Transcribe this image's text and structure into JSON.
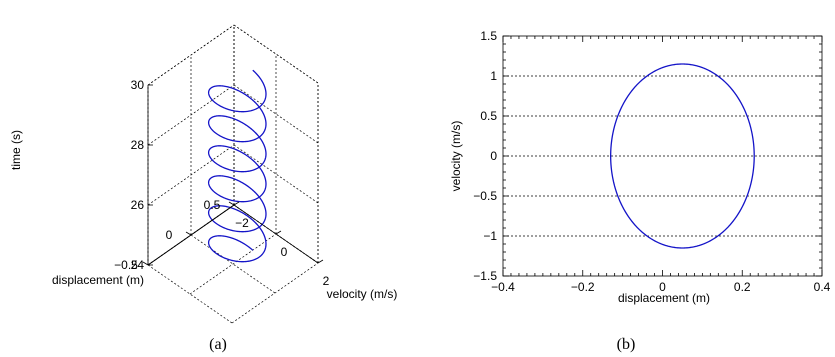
{
  "chart_data": [
    {
      "type": "line3d",
      "caption": "(a)",
      "xlabel": "displacement (m)",
      "ylabel": "velocity (m/s)",
      "zlabel": "time (s)",
      "xlim": [
        -0.5,
        0.5
      ],
      "ylim": [
        -2,
        2
      ],
      "zlim": [
        24,
        30
      ],
      "xticks": [
        -0.5,
        0,
        0.5
      ],
      "yticks": [
        -2,
        0,
        2
      ],
      "zticks": [
        24,
        26,
        28,
        30
      ],
      "xtick_labels": [
        "−0.5",
        "0",
        "0.5"
      ],
      "ytick_labels": [
        "−2",
        "0",
        "2"
      ],
      "ztick_labels": [
        "24",
        "26",
        "28",
        "30"
      ],
      "grid": true,
      "series": [
        {
          "color": "#1414c8",
          "center_displacement": 0.05,
          "displacement_amplitude": 0.18,
          "velocity_amplitude": 1.15,
          "time_start": 24,
          "time_end": 30,
          "turns": 6
        }
      ]
    },
    {
      "type": "line",
      "caption": "(b)",
      "xlabel": "displacement (m)",
      "ylabel": "velocity (m/s)",
      "xlim": [
        -0.4,
        0.4
      ],
      "ylim": [
        -1.5,
        1.5
      ],
      "xticks": [
        -0.4,
        -0.2,
        0,
        0.2,
        0.4
      ],
      "yticks": [
        -1.5,
        -1,
        -0.5,
        0,
        0.5,
        1,
        1.5
      ],
      "xtick_labels": [
        "−0.4",
        "−0.2",
        "0",
        "0.2",
        "0.4"
      ],
      "ytick_labels": [
        "−1.5",
        "−1",
        "−0.5",
        "0",
        "0.5",
        "1",
        "1.5"
      ],
      "grid": "horizontal",
      "series": [
        {
          "color": "#1414c8",
          "shape": "ellipse",
          "center": [
            0.05,
            0
          ],
          "displacement_amplitude": 0.18,
          "velocity_amplitude": 1.15
        }
      ]
    }
  ]
}
